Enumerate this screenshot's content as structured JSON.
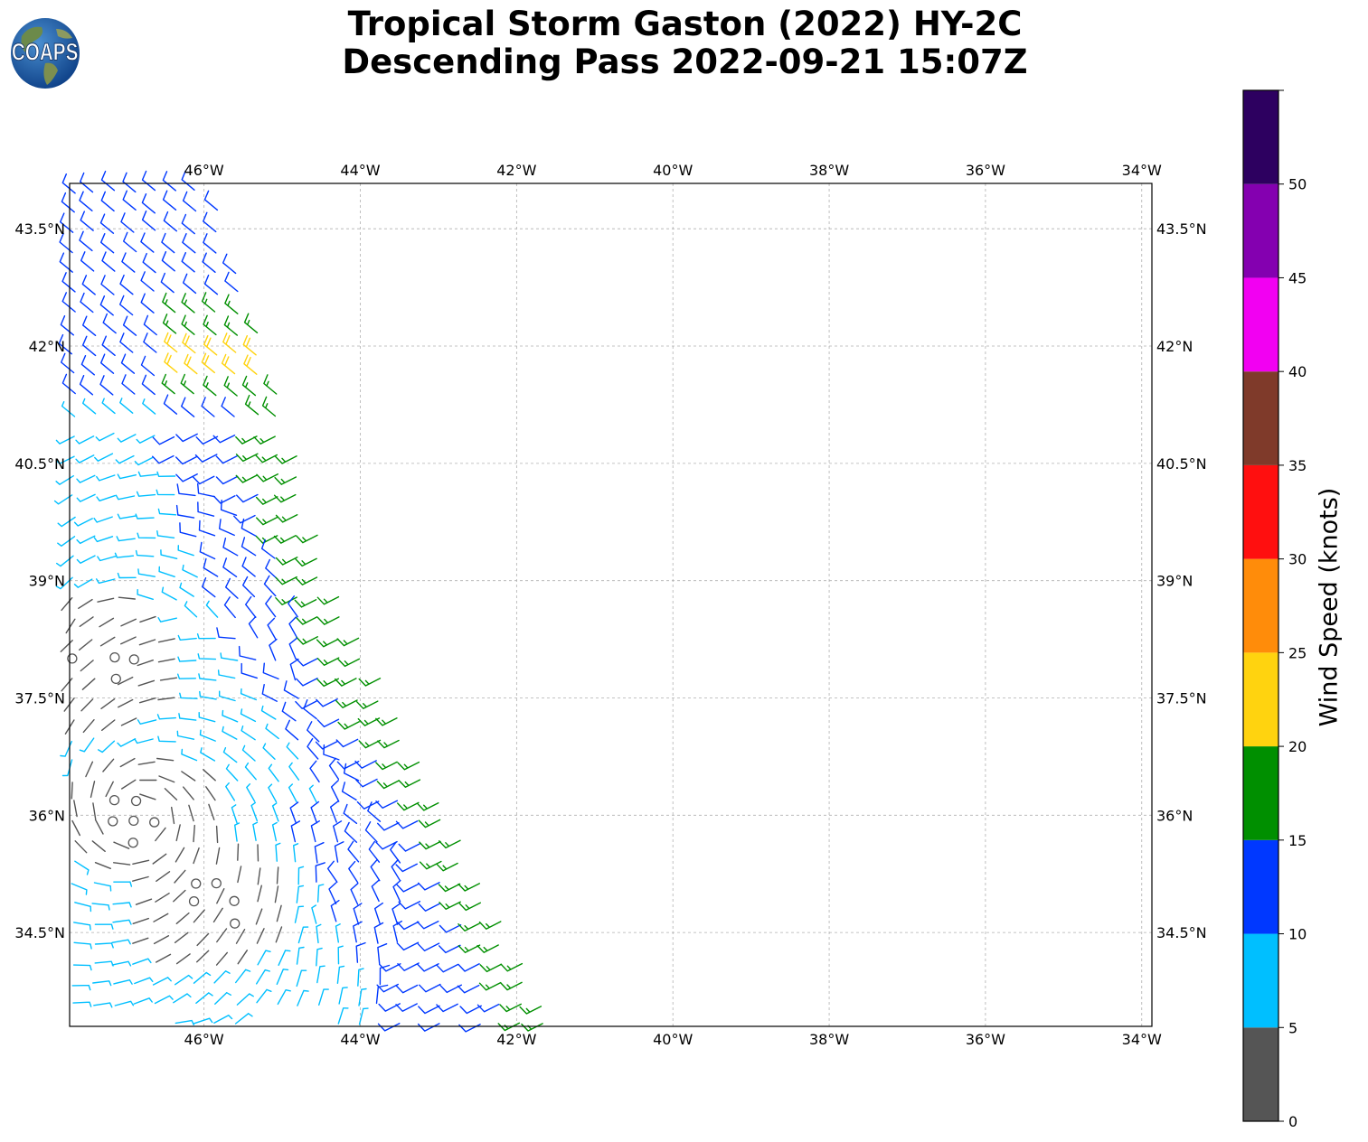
{
  "title": {
    "line1": "Tropical Storm Gaston (2022) HY-2C",
    "line2": "Descending Pass 2022-09-21 15:07Z"
  },
  "logo": {
    "text": "COAPS",
    "icon": "globe-logo-icon"
  },
  "map": {
    "lon_ticks": [
      "46°W",
      "44°W",
      "42°W",
      "40°W",
      "38°W",
      "36°W",
      "34°W"
    ],
    "lon_values": [
      -46,
      -44,
      -42,
      -40,
      -38,
      -36,
      -34
    ],
    "lat_ticks": [
      "43.5°N",
      "42°N",
      "40.5°N",
      "39°N",
      "37.5°N",
      "36°N",
      "34.5°N"
    ],
    "lat_values": [
      43.5,
      42,
      40.5,
      39,
      37.5,
      36,
      34.5
    ],
    "extent": {
      "lon_min": -47.72,
      "lon_max": -33.87,
      "lat_min": 33.3,
      "lat_max": 44.08
    },
    "gridlines": true
  },
  "colorbar": {
    "label": "Wind Speed (knots)",
    "ticks": [
      "0",
      "5",
      "10",
      "15",
      "20",
      "25",
      "30",
      "35",
      "40",
      "45",
      "50"
    ],
    "bins": [
      {
        "min": 0,
        "max": 5,
        "color": "#555555"
      },
      {
        "min": 5,
        "max": 10,
        "color": "#00bfff"
      },
      {
        "min": 10,
        "max": 15,
        "color": "#0038ff"
      },
      {
        "min": 15,
        "max": 20,
        "color": "#008f00"
      },
      {
        "min": 20,
        "max": 25,
        "color": "#ffd30f"
      },
      {
        "min": 25,
        "max": 30,
        "color": "#ff8c0a"
      },
      {
        "min": 30,
        "max": 35,
        "color": "#ff0f0f"
      },
      {
        "min": 35,
        "max": 40,
        "color": "#7f3a2a"
      },
      {
        "min": 40,
        "max": 45,
        "color": "#f200f2"
      },
      {
        "min": 45,
        "max": 50,
        "color": "#8400b0"
      },
      {
        "min": 50,
        "max": 55,
        "color": "#2d0060"
      }
    ]
  },
  "wind_barbs": {
    "swath_west_edge_lon": -47.72,
    "swath_east_edge": [
      [
        44.08,
        -45.9
      ],
      [
        40.6,
        -44.8
      ],
      [
        38.8,
        -44.3
      ],
      [
        36.2,
        -42.9
      ],
      [
        33.3,
        -41.5
      ]
    ],
    "vortex_centers": [
      [
        36.0,
        -46.8
      ],
      [
        34.8,
        -46.0
      ],
      [
        38.0,
        -47.3
      ]
    ],
    "bands": [
      {
        "lat_min": 41.6,
        "lat_max": 44.08,
        "speed": 11,
        "color": "#0038ff"
      },
      {
        "lat_min": 41.8,
        "lat_max": 43.2,
        "speed": 17,
        "color": "#008f00"
      },
      {
        "lat_min": 41.5,
        "lat_max": 42.1,
        "speed": 22,
        "color": "#ffd30f"
      },
      {
        "lat_min": 37.0,
        "lat_max": 41.0,
        "speed": 7,
        "color": "#00bfff"
      },
      {
        "lat_min": 36.0,
        "lat_max": 39.3,
        "speed": 12,
        "color": "#0038ff"
      },
      {
        "lat_min": 35.2,
        "lat_max": 38.8,
        "speed": 16,
        "color": "#008f00"
      },
      {
        "lat_min": 33.3,
        "lat_max": 36.2,
        "speed": 3,
        "color": "#555555"
      },
      {
        "lat_min": 33.3,
        "lat_max": 35.5,
        "speed": 8,
        "color": "#00bfff"
      },
      {
        "lat_min": 33.8,
        "lat_max": 35.6,
        "speed": 11,
        "color": "#0038ff"
      }
    ]
  }
}
